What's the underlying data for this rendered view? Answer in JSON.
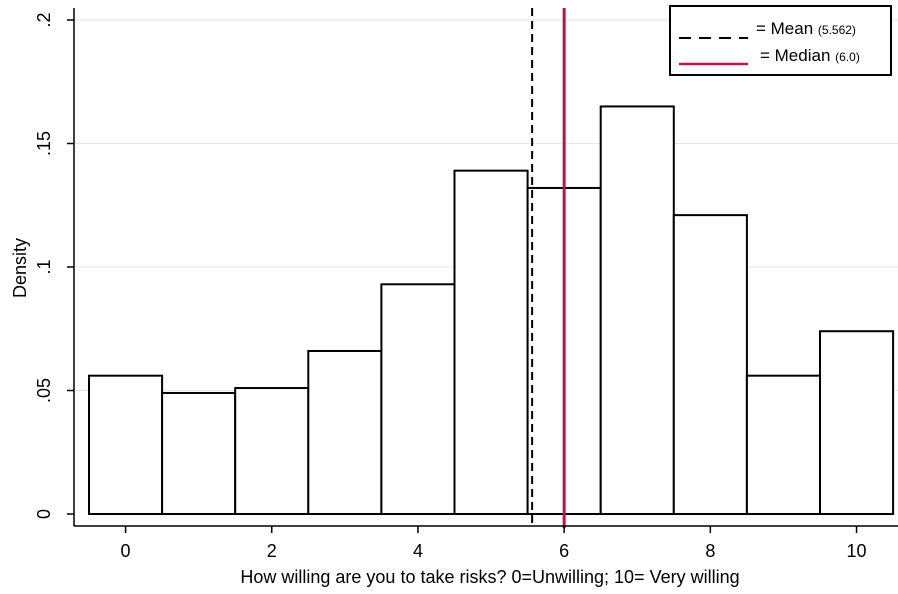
{
  "chart_data": {
    "type": "bar",
    "subtype": "histogram",
    "title": "",
    "xlabel": "How willing are you to take risks? 0=Unwilling; 10= Very willing",
    "ylabel": "Density",
    "categories": [
      0,
      1,
      2,
      3,
      4,
      5,
      6,
      7,
      8,
      9,
      10
    ],
    "values": [
      0.056,
      0.049,
      0.051,
      0.066,
      0.093,
      0.139,
      0.132,
      0.165,
      0.121,
      0.056,
      0.074
    ],
    "xlim": [
      -0.5,
      10.5
    ],
    "ylim": [
      0,
      0.2
    ],
    "x_ticks": [
      {
        "value": 0,
        "label": "0"
      },
      {
        "value": 2,
        "label": "2"
      },
      {
        "value": 4,
        "label": "4"
      },
      {
        "value": 6,
        "label": "6"
      },
      {
        "value": 8,
        "label": "8"
      },
      {
        "value": 10,
        "label": "10"
      }
    ],
    "y_ticks": [
      {
        "value": 0,
        "label": "0"
      },
      {
        "value": 0.05,
        "label": ".05"
      },
      {
        "value": 0.1,
        "label": ".1"
      },
      {
        "value": 0.15,
        "label": ".15"
      },
      {
        "value": 0.2,
        "label": ".2"
      }
    ],
    "grid": true,
    "reference_lines": [
      {
        "name": "mean",
        "value": 5.562,
        "style": "dashed",
        "color": "#000000"
      },
      {
        "name": "median",
        "value": 6.0,
        "style": "solid",
        "color": "#c0143c"
      }
    ],
    "legend": {
      "position": "top-right",
      "entries": [
        {
          "label": "= Mean",
          "detail": "(5.562)",
          "style": "dashed",
          "color": "#000000"
        },
        {
          "label": "= Median",
          "detail": "(6.0)",
          "style": "solid",
          "color": "#c0143c"
        }
      ]
    },
    "colors": {
      "bar_fill": "#ffffff",
      "bar_stroke": "#000000",
      "grid": "#e6e6e6"
    }
  }
}
